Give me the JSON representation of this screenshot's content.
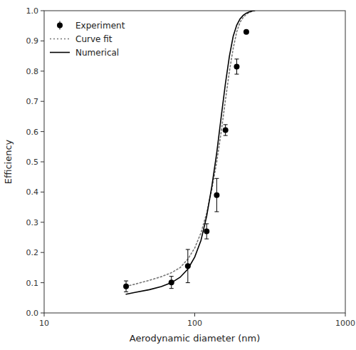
{
  "chart_data": {
    "type": "line",
    "xlabel": "Aerodynamic diameter (nm)",
    "ylabel": "Efficiency",
    "log": "x",
    "grid": false,
    "legend": "upper left",
    "xlim": [
      10,
      1000
    ],
    "ylim": [
      0.0,
      1.0
    ],
    "xticks": [
      10,
      100,
      1000
    ],
    "yticks": [
      {
        "value": 0.0,
        "label": "0.0"
      },
      0.1,
      0.2,
      0.3,
      0.4,
      0.5,
      0.6,
      0.7,
      0.8,
      0.9,
      {
        "value": 1.0,
        "label": "1.0"
      }
    ],
    "series": [
      {
        "name": "Experiment",
        "type": "scatter",
        "color": "#000000",
        "marker": "circle",
        "x": [
          35,
          70,
          90,
          120,
          140,
          160,
          190,
          220
        ],
        "values": [
          0.088,
          0.101,
          0.155,
          0.27,
          0.39,
          0.605,
          0.815,
          0.93
        ],
        "errors": [
          0.018,
          0.02,
          0.055,
          0.025,
          0.055,
          0.018,
          0.025,
          0.005
        ]
      },
      {
        "name": "Curve fit",
        "type": "line",
        "color": "#777777",
        "line_style": "dotted",
        "x": [
          35,
          40,
          50,
          60,
          70,
          80,
          90,
          100,
          110,
          120,
          130,
          140,
          150,
          160,
          170,
          180,
          190,
          200,
          210,
          220,
          230,
          240,
          250
        ],
        "values": [
          0.088,
          0.095,
          0.108,
          0.12,
          0.133,
          0.15,
          0.178,
          0.215,
          0.265,
          0.33,
          0.41,
          0.5,
          0.6,
          0.705,
          0.8,
          0.875,
          0.93,
          0.962,
          0.978,
          0.988,
          0.994,
          0.998,
          1.0
        ]
      },
      {
        "name": "Numerical",
        "type": "line",
        "color": "#000000",
        "line_style": "solid",
        "x": [
          35,
          40,
          50,
          60,
          70,
          80,
          90,
          100,
          110,
          120,
          130,
          140,
          150,
          160,
          170,
          180,
          190,
          200,
          210,
          220,
          230,
          240,
          250
        ],
        "values": [
          0.062,
          0.068,
          0.077,
          0.087,
          0.1,
          0.118,
          0.145,
          0.185,
          0.24,
          0.32,
          0.42,
          0.53,
          0.65,
          0.76,
          0.85,
          0.915,
          0.952,
          0.973,
          0.985,
          0.992,
          0.996,
          0.999,
          1.0
        ]
      }
    ]
  }
}
